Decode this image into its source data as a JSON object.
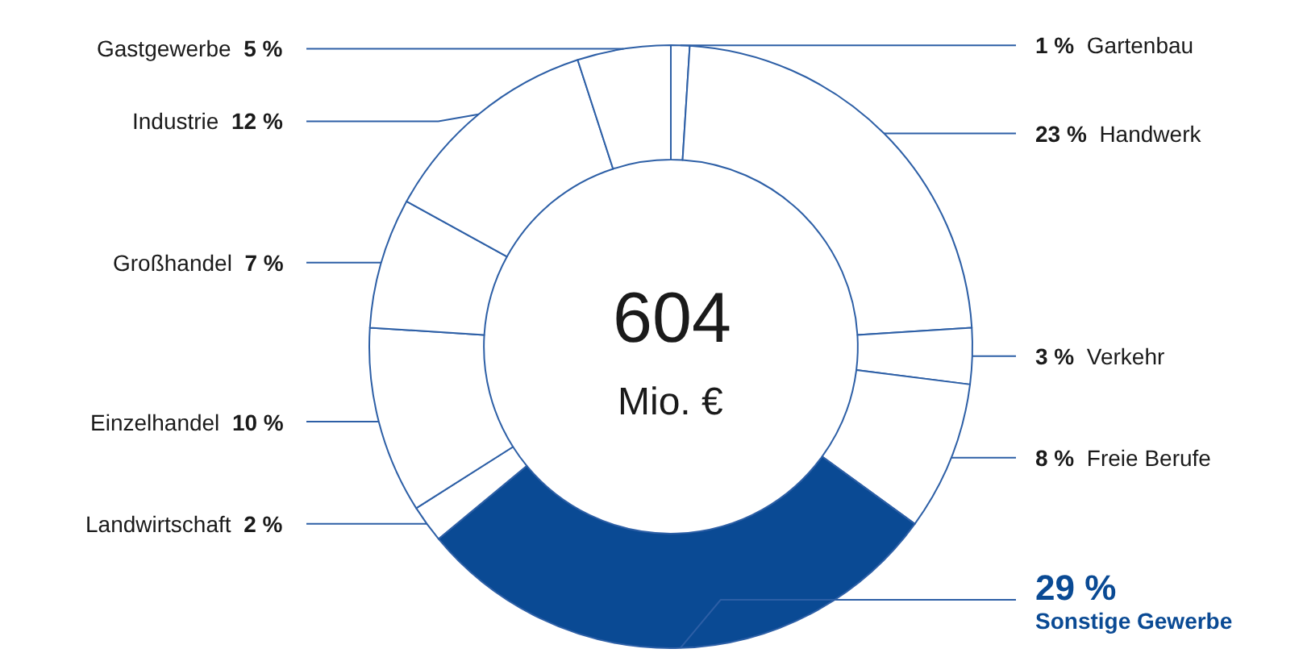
{
  "chart_data": {
    "type": "donut",
    "categories": [
      "Gartenbau",
      "Handwerk",
      "Verkehr",
      "Freie Berufe",
      "Sonstige Gewerbe",
      "Landwirtschaft",
      "Einzelhandel",
      "Großhandel",
      "Industrie",
      "Gastgewerbe"
    ],
    "values": [
      1,
      23,
      3,
      8,
      29,
      2,
      10,
      7,
      12,
      5
    ],
    "value_labels": [
      "1 %",
      "23 %",
      "3 %",
      "8 %",
      "29 %",
      "2 %",
      "10 %",
      "7 %",
      "12 %",
      "5 %"
    ],
    "colors": [
      "#ffffff",
      "#ffffff",
      "#ffffff",
      "#ffffff",
      "#0a4a94",
      "#ffffff",
      "#ffffff",
      "#ffffff",
      "#ffffff",
      "#ffffff"
    ],
    "annotations": [
      "604",
      "Mio. €"
    ],
    "legend": false
  }
}
